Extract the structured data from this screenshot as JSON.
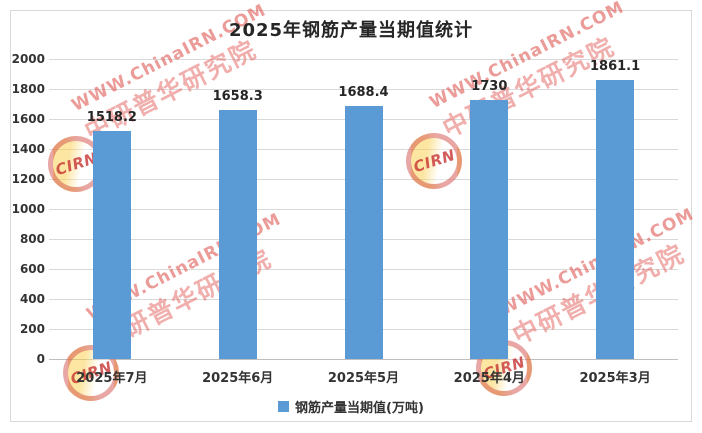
{
  "chart_data": {
    "type": "bar",
    "title": "2025年钢筋产量当期值统计",
    "categories": [
      "2025年7月",
      "2025年6月",
      "2025年5月",
      "2025年4月",
      "2025年3月"
    ],
    "values": [
      1518.2,
      1658.3,
      1688.4,
      1730,
      1861.1
    ],
    "value_labels": [
      "1518.2",
      "1658.3",
      "1688.4",
      "1730",
      "1861.1"
    ],
    "legend_label": "钢筋产量当期值(万吨)",
    "legend_position": "bottom",
    "xlabel": "",
    "ylabel": "",
    "ylim": [
      0,
      2000
    ],
    "yticks": [
      0,
      200,
      400,
      600,
      800,
      1000,
      1200,
      1400,
      1600,
      1800,
      2000
    ],
    "grid": true,
    "bar_color": "#5B9BD5",
    "grid_color": "#D9D9D9",
    "axis_line_color": "#BFBFBF",
    "text_color": "#333333",
    "title_color": "#262626"
  },
  "watermark": {
    "line1": "WWW.ChinaIRN.COM",
    "line2": "中研普华研究院",
    "logo_text": "CIRN",
    "color": "#DD6A6A"
  }
}
